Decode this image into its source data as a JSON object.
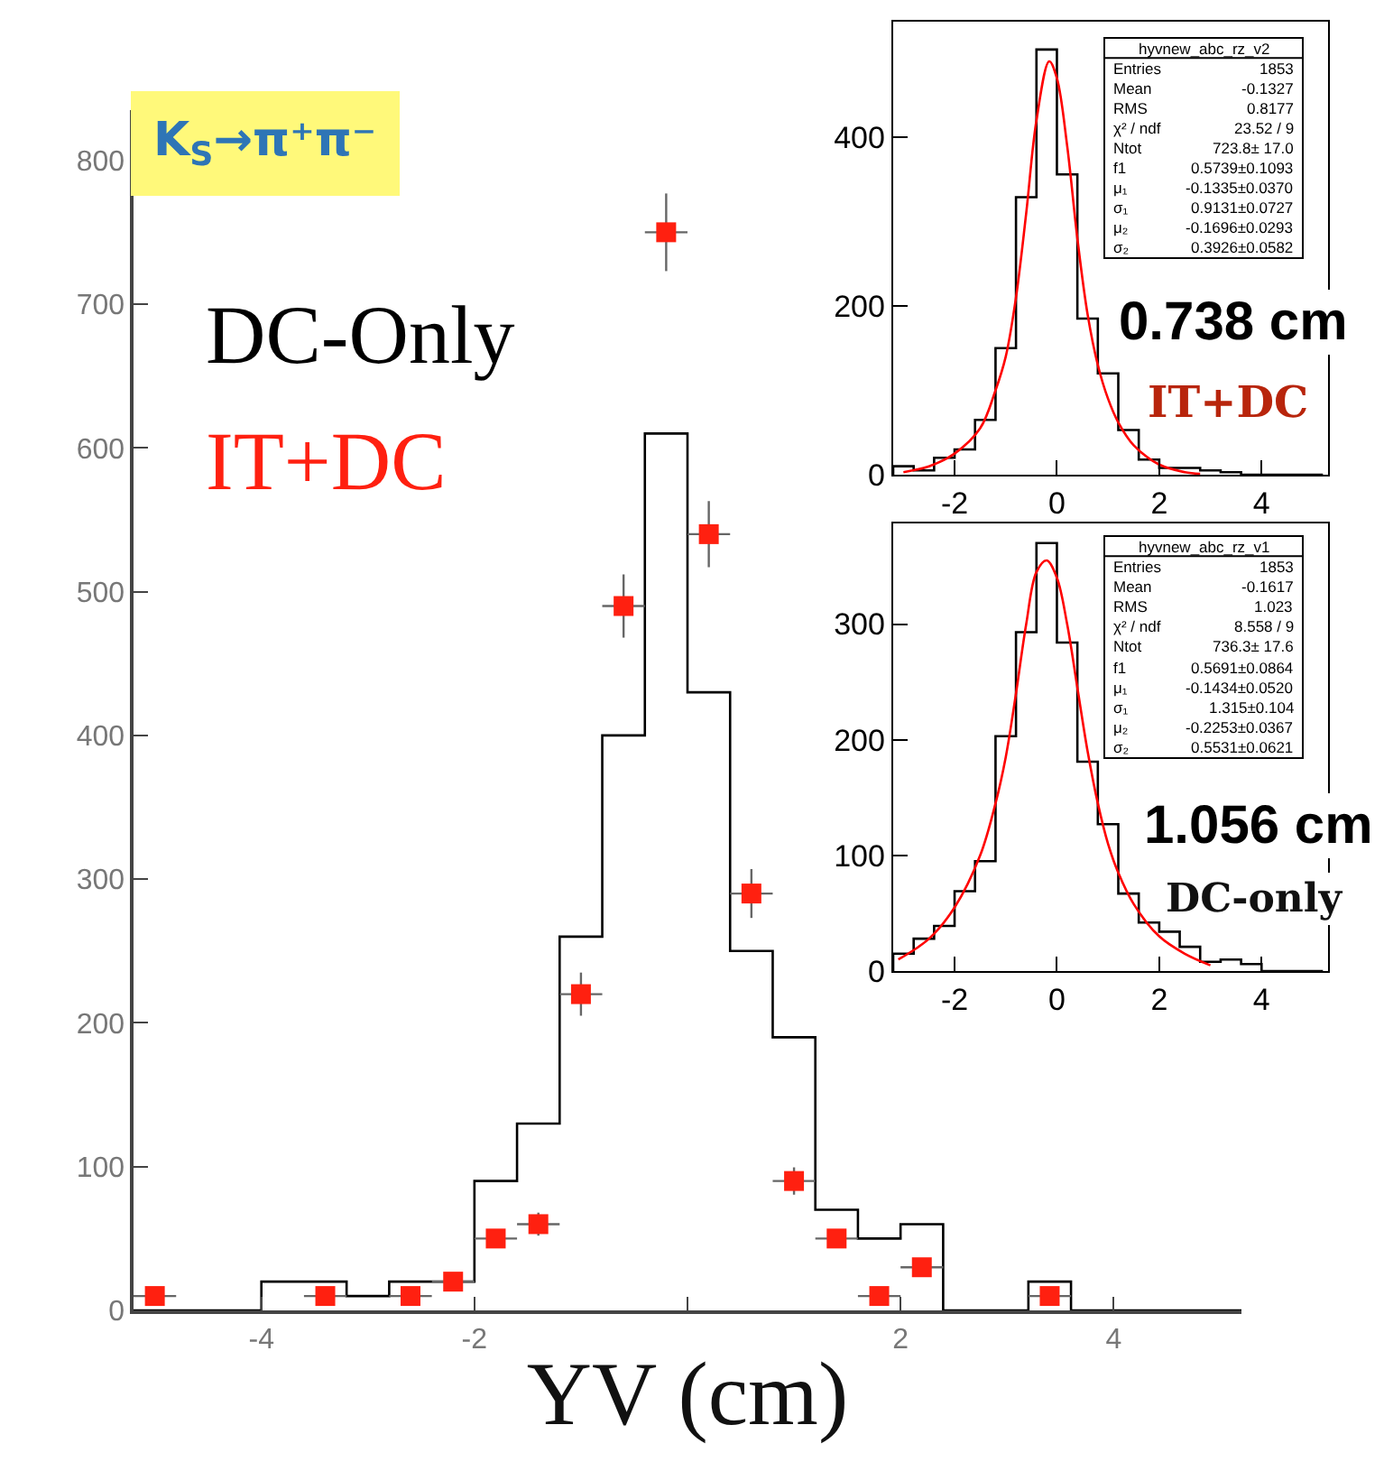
{
  "chart_data": [
    {
      "type": "histogram",
      "title": "K$_{S}$→π⁺π⁻",
      "xlabel": "YV (cm)",
      "bins": [
        -5.2,
        -4.8,
        -4.4,
        -4.0,
        -3.6,
        -3.2,
        -2.8,
        -2.4,
        -2.0,
        -1.6,
        -1.2,
        -0.8,
        -0.4,
        0,
        0.4,
        0.8,
        1.2,
        1.6,
        2.0,
        2.4,
        2.8,
        3.2,
        3.6,
        4.0,
        4.4,
        4.8,
        5.2
      ],
      "series": [
        {
          "name": "DC-Only",
          "color": "#000000",
          "values": [
            0,
            0,
            0,
            20,
            20,
            10,
            20,
            20,
            90,
            130,
            260,
            400,
            610,
            430,
            250,
            190,
            70,
            50,
            60,
            0,
            0,
            20,
            0,
            0,
            0,
            0
          ]
        },
        {
          "name": "IT+DC",
          "type": "scatter",
          "color": "#ff2010",
          "marker": "square",
          "x": [
            -5.0,
            -3.4,
            -2.6,
            -2.2,
            -1.8,
            -1.4,
            -1.0,
            -0.6,
            -0.2,
            0.2,
            0.6,
            1.0,
            1.4,
            1.8,
            2.2,
            3.4
          ],
          "values": [
            10,
            10,
            10,
            20,
            50,
            60,
            220,
            490,
            750,
            540,
            290,
            90,
            50,
            10,
            30,
            10
          ],
          "errors": [
            null,
            null,
            null,
            null,
            null,
            8,
            15,
            22,
            27,
            23,
            17,
            9.5,
            null,
            null,
            null,
            null
          ],
          "xerrors": [
            0.2,
            0.2,
            0.2,
            0.2,
            0.2,
            0.2,
            0.2,
            0.2,
            0.2,
            0.2,
            0.2,
            0.2,
            0.2,
            0.2,
            0.2,
            0.2
          ]
        }
      ],
      "xlim": [
        -5.2,
        5.2
      ],
      "xticks": [
        -4,
        -2,
        {
          "value": 0,
          "label": null
        },
        2,
        4
      ],
      "ylim": [
        0,
        835
      ],
      "yticks": [
        0,
        100,
        200,
        300,
        400,
        500,
        600,
        700,
        800
      ]
    },
    {
      "type": "histogram",
      "bins": [
        -3.2,
        -2.8,
        -2.4,
        -2.0,
        -1.6,
        -1.2,
        -0.8,
        -0.4,
        0,
        0.4,
        0.8,
        1.2,
        1.6,
        2.0,
        2.4,
        2.8,
        3.2,
        3.6,
        4.0,
        4.4,
        4.8,
        5.2
      ],
      "series": [
        {
          "color": "#000000",
          "values": [
            10,
            5,
            20,
            30,
            65,
            150,
            329,
            504,
            356,
            185,
            120,
            53,
            18,
            8,
            8,
            5,
            3,
            0,
            0,
            0,
            0
          ]
        },
        {
          "type": "line",
          "color": "#ff0000",
          "x": [
            -3.0,
            -2.5,
            -2.0,
            -1.5,
            -1.2,
            -1.0,
            -0.8,
            -0.6,
            -0.4,
            -0.15,
            0,
            0.2,
            0.4,
            0.6,
            0.8,
            1.0,
            1.2,
            1.5,
            2.0,
            2.5,
            2.8
          ],
          "values": [
            3,
            10,
            25,
            55,
            100,
            140,
            210,
            310,
            420,
            490,
            470,
            390,
            280,
            190,
            130,
            90,
            62,
            35,
            12,
            3,
            1
          ]
        }
      ],
      "xlim": [
        -3.2,
        5.3
      ],
      "xticks": [
        -2,
        0,
        2,
        4
      ],
      "ylim": [
        0,
        537
      ],
      "yticks": [
        0,
        200,
        400
      ],
      "annotations": [
        "hyvnew_abc_rz_v2",
        "Entries",
        "1853",
        "Mean",
        "-0.1327",
        "RMS",
        "0.8177",
        "χ² / ndf",
        "23.52 / 9",
        "Ntot",
        "723.8± 17.0",
        "f1",
        "0.5739±0.1093",
        "μ₁",
        "-0.1335±0.0370",
        "σ₁",
        "0.9131±0.0727",
        "μ₂",
        "-0.1696±0.0293",
        "σ₂",
        "0.3926±0.0582",
        "0.738 cm",
        "IT+DC"
      ]
    },
    {
      "type": "histogram",
      "bins": [
        -3.2,
        -2.8,
        -2.4,
        -2.0,
        -1.6,
        -1.2,
        -0.8,
        -0.4,
        0,
        0.4,
        0.8,
        1.2,
        1.6,
        2.0,
        2.4,
        2.8,
        3.2,
        3.6,
        4.0,
        4.4,
        4.8,
        5.2
      ],
      "series": [
        {
          "color": "#000000",
          "values": [
            15,
            28,
            39,
            69,
            95,
            203,
            293,
            370,
            284,
            181,
            127,
            67,
            42,
            34,
            21,
            8,
            10,
            6,
            0,
            0,
            0
          ]
        },
        {
          "type": "line",
          "color": "#ff0000",
          "x": [
            -3.1,
            -2.5,
            -2.0,
            -1.5,
            -1.2,
            -1.0,
            -0.8,
            -0.6,
            -0.4,
            -0.2,
            0,
            0.2,
            0.4,
            0.6,
            0.8,
            1.0,
            1.2,
            1.5,
            2.0,
            2.5,
            3.0
          ],
          "values": [
            10,
            28,
            55,
            100,
            145,
            185,
            240,
            300,
            345,
            355,
            340,
            300,
            245,
            190,
            145,
            110,
            85,
            58,
            30,
            15,
            5
          ]
        }
      ],
      "xlim": [
        -3.2,
        5.3
      ],
      "xticks": [
        -2,
        0,
        2,
        4
      ],
      "ylim": [
        0,
        387
      ],
      "yticks": [
        0,
        100,
        200,
        300
      ],
      "annotations": [
        "hyvnew_abc_rz_v1",
        "Entries",
        "1853",
        "Mean",
        "-0.1617",
        "RMS",
        "1.023",
        "χ² / ndf",
        "8.558 / 9",
        "Ntot",
        "736.3± 17.6",
        "f1",
        "0.5691±0.0864",
        "μ₁",
        "-0.1434±0.0520",
        "σ₁",
        "1.315±0.104",
        "μ₂",
        "-0.2253±0.0367",
        "σ₂",
        "0.5531±0.0621",
        "1.056 cm",
        "DC-only"
      ]
    }
  ]
}
